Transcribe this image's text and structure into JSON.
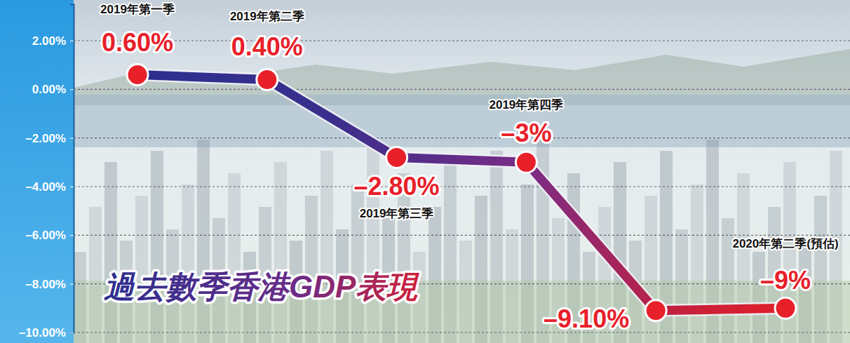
{
  "chart_data": {
    "type": "line",
    "title": "過去數季香港GDP表現",
    "categories": [
      "2019年第一季",
      "2019年第二季",
      "2019年第三季",
      "2019年第四季",
      null,
      "2020年第二季(預估)"
    ],
    "values": [
      0.6,
      0.4,
      -2.8,
      -3,
      -9.1,
      -9
    ],
    "value_labels": [
      "0.60%",
      "0.40%",
      "–2.80%",
      "–3%",
      "–9.10%",
      "–9%"
    ],
    "ylim": [
      -10,
      3.5
    ],
    "yticks": [
      {
        "value": 2,
        "label": "2.00%"
      },
      {
        "value": 0,
        "label": "0.00%"
      },
      {
        "value": -2,
        "label": "–2.00%"
      },
      {
        "value": -4,
        "label": "–4.00%"
      },
      {
        "value": -6,
        "label": "–6.00%"
      },
      {
        "value": -8,
        "label": "–8.00%"
      },
      {
        "value": -10,
        "label": "–10.00%"
      }
    ],
    "grid": true,
    "data_labels": true,
    "marker": "circle",
    "color": "#e8202a"
  }
}
